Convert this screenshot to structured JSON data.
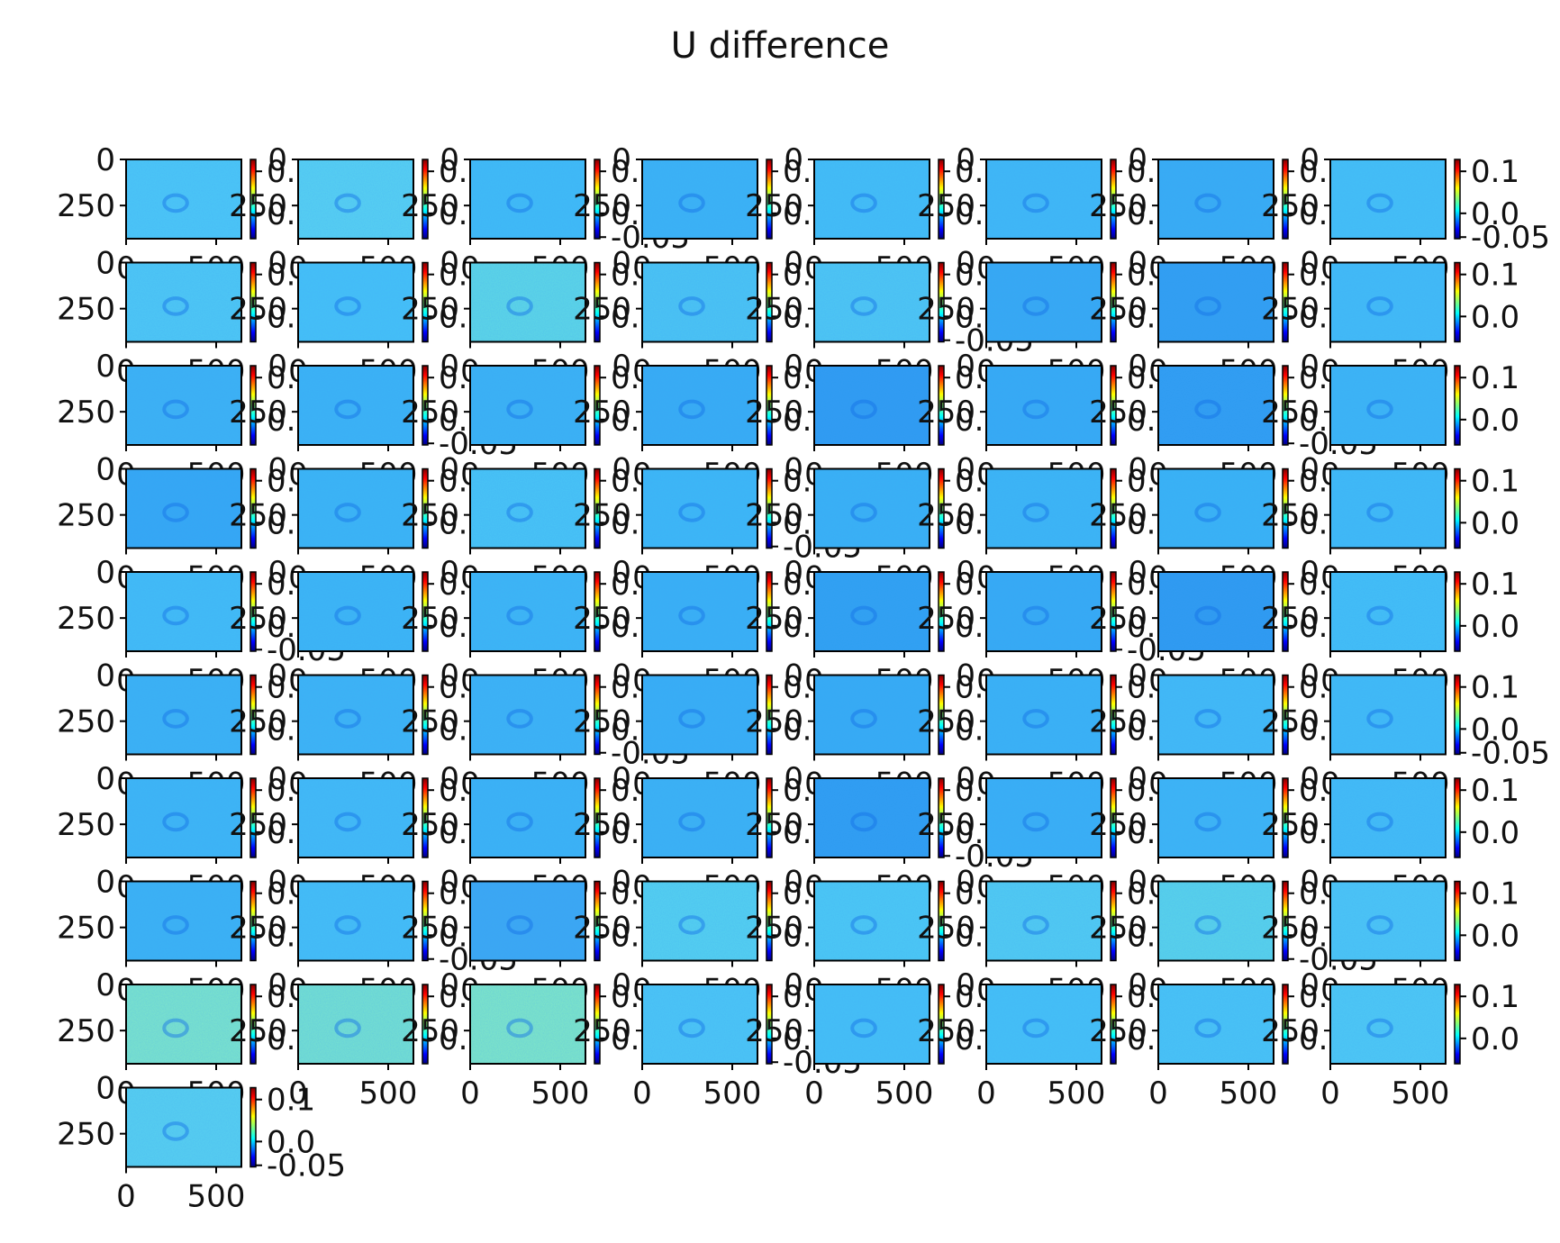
{
  "chart_data": {
    "type": "heatmap",
    "title": "U difference",
    "grid": {
      "rows": 10,
      "cols": 8,
      "panel_count": 73
    },
    "panel_axes": {
      "x_ticks": [
        "0",
        "500"
      ],
      "y_ticks": [
        "0",
        "250"
      ],
      "x_range": [
        0,
        640
      ],
      "y_range": [
        430,
        0
      ]
    },
    "colorbar": {
      "ticks": [
        "0.1",
        "0.0"
      ],
      "extra_tick": "-0.05",
      "colormap": "jet"
    },
    "panel_tints": [
      "#4cc9f5",
      "#58d3f0",
      "#3fbdf5",
      "#3ab4f4",
      "#43c0f5",
      "#3fbaf5",
      "#37adf3",
      "#44c2f5",
      "#4ecaf3",
      "#45c3f6",
      "#5ed9e4",
      "#4bc6f2",
      "#4ec9f2",
      "#35a9f2",
      "#2f9ef0",
      "#41bdf5",
      "#3bb3f3",
      "#3ab4f4",
      "#3ab3f3",
      "#36adf3",
      "#2d9af0",
      "#35abf3",
      "#2e9cf0",
      "#3bb6f4",
      "#33a8f3",
      "#3ab6f4",
      "#48c6f4",
      "#3cb9f5",
      "#38b2f4",
      "#3bb7f4",
      "#38b4f4",
      "#3fbcf5",
      "#41bef5",
      "#3bb7f4",
      "#3cb7f4",
      "#38b1f4",
      "#2ea0f0",
      "#35abf3",
      "#2c99ef",
      "#42c1f5",
      "#3ab3f3",
      "#3cb5f4",
      "#3bb4f4",
      "#37aff4",
      "#35acf3",
      "#39b3f4",
      "#41bcf5",
      "#40bdf5",
      "#3db7f4",
      "#41bcf5",
      "#3ab4f4",
      "#3ab3f3",
      "#2d9cf0",
      "#38b0f4",
      "#3cb6f4",
      "#42bef5",
      "#3ab3f3",
      "#44c0f5",
      "#3aa8f2",
      "#55d3ee",
      "#4ccbf3",
      "#52cef0",
      "#5ad6e8",
      "#4cc8f4",
      "#7fe8c8",
      "#78e4cd",
      "#82eac4",
      "#4cc8f4",
      "#45c2f5",
      "#45c3f5",
      "#49c6f4",
      "#4ecbf3",
      "#58d2ee"
    ]
  }
}
